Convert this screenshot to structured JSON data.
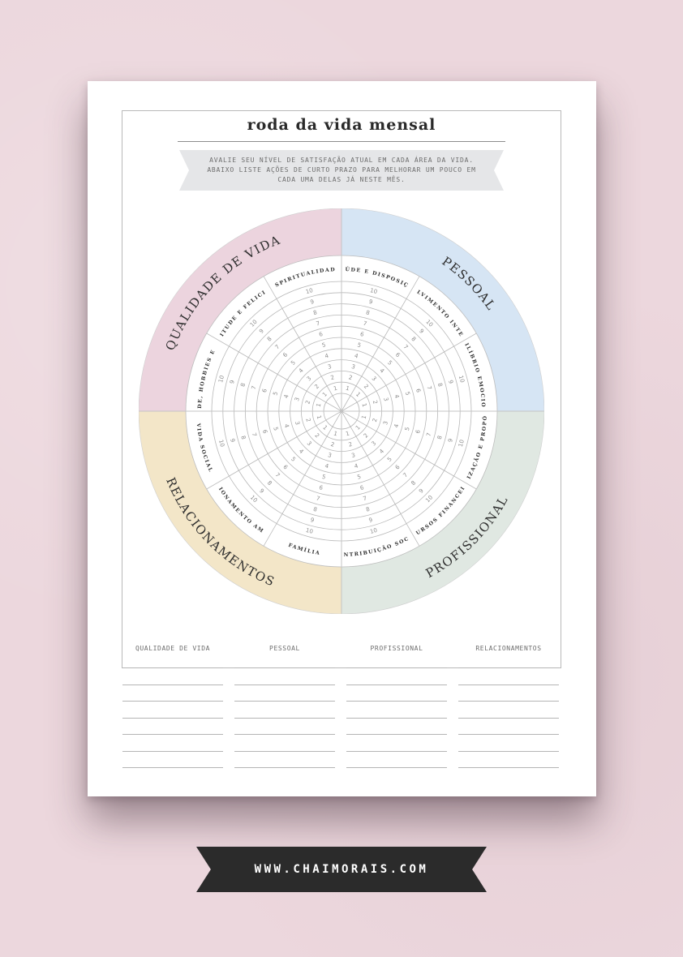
{
  "title": "roda da vida mensal",
  "instructions": "AVALIE SEU NÍVEL DE SATISFAÇÃO ATUAL EM CADA ÁREA DA VIDA. ABAIXO LISTE AÇÕES DE CURTO PRAZO PARA MELHORAR UM POUCO EM CADA UMA DELAS JÁ NESTE MÊS.",
  "wheel": {
    "scale": [
      "1",
      "2",
      "3",
      "4",
      "5",
      "6",
      "7",
      "8",
      "9",
      "10"
    ],
    "areas": [
      {
        "name": "QUALIDADE DE VIDA",
        "color": "#ecd4de",
        "items": [
          "GRATIDUDE, HOBBIES E DIVERSÃO",
          "PLENITUDE E FELICIDADE",
          "ESPIRITUALIDADE"
        ]
      },
      {
        "name": "PESSOAL",
        "color": "#d6e5f4",
        "items": [
          "SAÚDE E DISPOSIÇÃO",
          "DESENVOLVIMENTO INTELECTUAL",
          "EQUILÍBRIO EMOCIONAL"
        ]
      },
      {
        "name": "PROFISSIONAL",
        "color": "#e0e8e2",
        "items": [
          "REALIZAÇÃO E PROPÓSITO",
          "RECURSOS FINANCEIROS",
          "CONTRIBUIÇÃO SOCIAL"
        ]
      },
      {
        "name": "RELACIONAMENTOS",
        "color": "#f3e6c8",
        "items": [
          "FAMÍLIA",
          "RELACIONAMENTO AMOROSO",
          "VIDA SOCIAL"
        ]
      }
    ]
  },
  "columns": [
    {
      "label": "QUALIDADE DE VIDA"
    },
    {
      "label": "PESSOAL"
    },
    {
      "label": "PROFISSIONAL"
    },
    {
      "label": "RELACIONAMENTOS"
    }
  ],
  "website": "WWW.CHAIMORAIS.COM"
}
